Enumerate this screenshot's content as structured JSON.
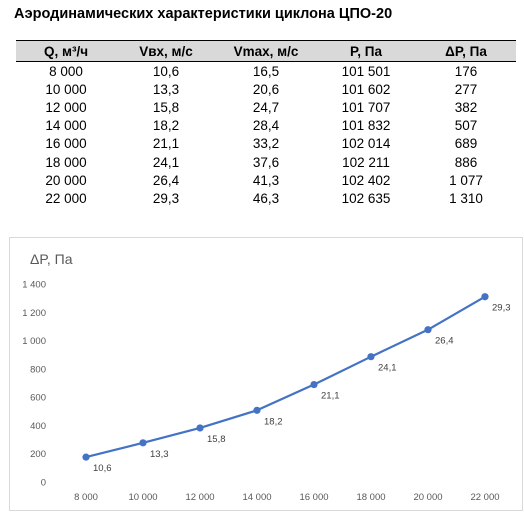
{
  "title": "Аэродинамических характеристики циклона ЦПО-20",
  "table": {
    "headers": [
      "Q, м³/ч",
      "Vвх, м/с",
      "Vmax, м/с",
      "P, Па",
      "ΔP, Па"
    ],
    "rows": [
      [
        "8 000",
        "10,6",
        "16,5",
        "101 501",
        "176"
      ],
      [
        "10 000",
        "13,3",
        "20,6",
        "101 602",
        "277"
      ],
      [
        "12 000",
        "15,8",
        "24,7",
        "101 707",
        "382"
      ],
      [
        "14 000",
        "18,2",
        "28,4",
        "101 832",
        "507"
      ],
      [
        "16 000",
        "21,1",
        "33,2",
        "102 014",
        "689"
      ],
      [
        "18 000",
        "24,1",
        "37,6",
        "102 211",
        "886"
      ],
      [
        "20 000",
        "26,4",
        "41,3",
        "102 402",
        "1 077"
      ],
      [
        "22 000",
        "29,3",
        "46,3",
        "102 635",
        "1 310"
      ]
    ]
  },
  "chart_data": {
    "type": "line",
    "ylabel": "ΔP, Па",
    "x": [
      8000,
      10000,
      12000,
      14000,
      16000,
      18000,
      20000,
      22000
    ],
    "x_tick_labels": [
      "8 000",
      "10 000",
      "12 000",
      "14 000",
      "16 000",
      "18 000",
      "20 000",
      "22 000"
    ],
    "y_ticks": [
      0,
      200,
      400,
      600,
      800,
      1000,
      1200,
      1400
    ],
    "y_tick_labels": [
      "0",
      "200",
      "400",
      "600",
      "800",
      "1 000",
      "1 200",
      "1 400"
    ],
    "ylim": [
      0,
      1400
    ],
    "series": [
      {
        "values": [
          176,
          277,
          382,
          507,
          689,
          886,
          1077,
          1310
        ],
        "point_labels": [
          "10,6",
          "13,3",
          "15,8",
          "18,2",
          "21,1",
          "24,1",
          "26,4",
          "29,3"
        ]
      }
    ],
    "grid": false,
    "line_color": "#4472c4"
  }
}
